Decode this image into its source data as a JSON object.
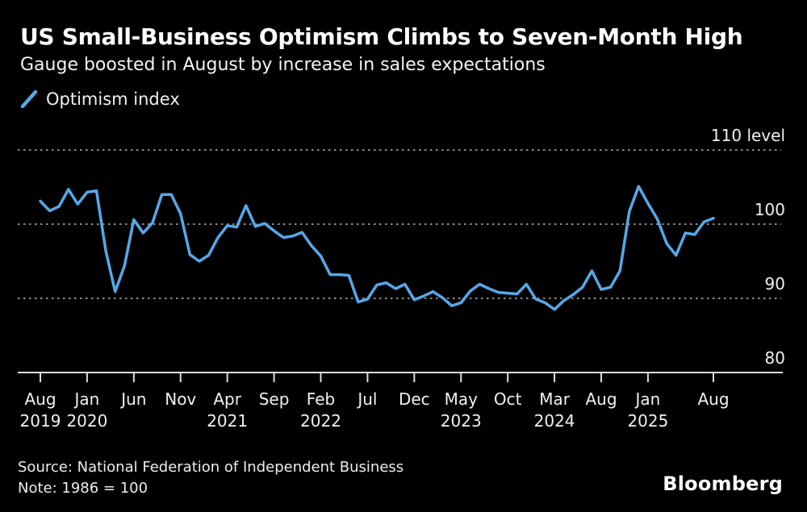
{
  "header": {
    "title": "US Small-Business Optimism Climbs to Seven-Month High",
    "subtitle": "Gauge boosted in August by increase in sales expectations"
  },
  "legend": {
    "label": "Optimism index"
  },
  "footer": {
    "source": "Source: National Federation of Independent Business",
    "note": "Note: 1986 = 100",
    "brand": "Bloomberg"
  },
  "chart_data": {
    "type": "line",
    "title": "US Small-Business Optimism Climbs to Seven-Month High",
    "x_start": "Aug 2019",
    "x_end": "Aug 2025",
    "interval": "monthly",
    "ylim": [
      80,
      110
    ],
    "y_axis": {
      "top_label": "110 level",
      "dotted_gridlines": [
        110,
        100,
        90
      ],
      "baseline_value": 80,
      "value_labels": [
        {
          "value": 100,
          "label": "100"
        },
        {
          "value": 90,
          "label": "90"
        },
        {
          "value": 80,
          "label": "80"
        }
      ]
    },
    "x_ticks": [
      {
        "index": 0,
        "month": "Aug",
        "year": "2019"
      },
      {
        "index": 5,
        "month": "Jan",
        "year": "2020"
      },
      {
        "index": 10,
        "month": "Jun"
      },
      {
        "index": 15,
        "month": "Nov"
      },
      {
        "index": 20,
        "month": "Apr",
        "year": "2021"
      },
      {
        "index": 25,
        "month": "Sep"
      },
      {
        "index": 30,
        "month": "Feb",
        "year": "2022"
      },
      {
        "index": 35,
        "month": "Jul"
      },
      {
        "index": 40,
        "month": "Dec"
      },
      {
        "index": 45,
        "month": "May",
        "year": "2023"
      },
      {
        "index": 50,
        "month": "Oct"
      },
      {
        "index": 55,
        "month": "Mar",
        "year": "2024"
      },
      {
        "index": 60,
        "month": "Aug"
      },
      {
        "index": 65,
        "month": "Jan",
        "year": "2025"
      },
      {
        "index": 72,
        "month": "Aug"
      }
    ],
    "series": [
      {
        "name": "Optimism index",
        "color": "#55a8e8",
        "values": [
          103.1,
          101.8,
          102.4,
          104.7,
          102.7,
          104.3,
          104.5,
          96.4,
          90.9,
          94.4,
          100.6,
          98.8,
          100.2,
          104.0,
          104.0,
          101.4,
          95.9,
          95.0,
          95.8,
          98.2,
          99.8,
          99.6,
          102.5,
          99.7,
          100.1,
          99.1,
          98.2,
          98.4,
          98.9,
          97.1,
          95.7,
          93.2,
          93.2,
          93.1,
          89.5,
          89.9,
          91.8,
          92.1,
          91.3,
          91.9,
          89.8,
          90.3,
          90.9,
          90.1,
          89.0,
          89.4,
          91.0,
          91.9,
          91.3,
          90.8,
          90.7,
          90.6,
          91.9,
          89.9,
          89.4,
          88.5,
          89.7,
          90.5,
          91.5,
          93.7,
          91.2,
          91.5,
          93.7,
          101.7,
          105.1,
          102.8,
          100.7,
          97.4,
          95.8,
          98.8,
          98.6,
          100.3,
          100.8
        ]
      }
    ],
    "colors": {
      "background": "#000000",
      "line": "#55a8e8",
      "grid": "#8c8c8c",
      "axis": "#dcdcdc",
      "text": "#f0f0f0"
    },
    "legend_position": "top-left",
    "grid": "horizontal-dotted"
  }
}
